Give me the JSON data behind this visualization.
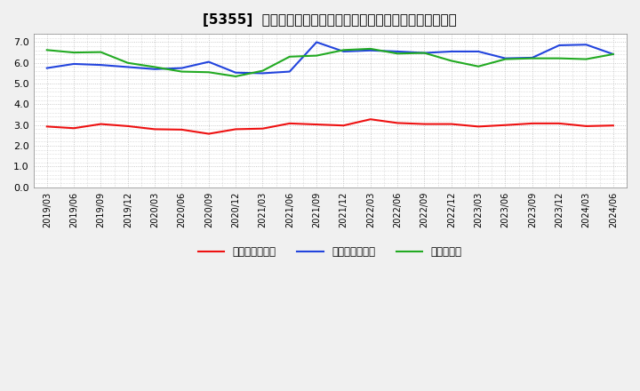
{
  "title": "[5355]  売上債権回転率、買入債務回転率、在庫回転率の推移",
  "x_labels": [
    "2019/03",
    "2019/06",
    "2019/09",
    "2019/12",
    "2020/03",
    "2020/06",
    "2020/09",
    "2020/12",
    "2021/03",
    "2021/06",
    "2021/09",
    "2021/12",
    "2022/03",
    "2022/06",
    "2022/09",
    "2022/12",
    "2023/03",
    "2023/06",
    "2023/09",
    "2023/12",
    "2024/03",
    "2024/06"
  ],
  "売上債権回転率": [
    2.93,
    2.85,
    3.05,
    2.95,
    2.8,
    2.78,
    2.58,
    2.8,
    2.83,
    3.08,
    3.03,
    2.98,
    3.28,
    3.1,
    3.05,
    3.05,
    2.93,
    3.0,
    3.08,
    3.08,
    2.95,
    2.98
  ],
  "買入債務回転率": [
    5.75,
    5.95,
    5.9,
    5.8,
    5.7,
    5.75,
    6.05,
    5.53,
    5.5,
    5.58,
    7.0,
    6.55,
    6.6,
    6.55,
    6.48,
    6.55,
    6.55,
    6.22,
    6.25,
    6.85,
    6.88,
    6.42
  ],
  "在庫回転率": [
    6.62,
    6.5,
    6.52,
    6.0,
    5.8,
    5.58,
    5.55,
    5.35,
    5.62,
    6.3,
    6.35,
    6.62,
    6.68,
    6.45,
    6.48,
    6.1,
    5.83,
    6.18,
    6.22,
    6.22,
    6.18,
    6.42
  ],
  "line_colors": {
    "売上債権回転率": "#ee1111",
    "買入債務回転率": "#2244dd",
    "在庫回転率": "#22aa22"
  },
  "ylim": [
    0.0,
    7.4
  ],
  "yticks": [
    0.0,
    1.0,
    2.0,
    3.0,
    4.0,
    5.0,
    6.0,
    7.0
  ],
  "background_color": "#f0f0f0",
  "plot_bg_color": "#ffffff",
  "grid_color": "#bbbbbb",
  "title_fontsize": 11,
  "legend_labels": [
    "売上債権回転率",
    "買入債務回転率",
    "在庫回転率"
  ]
}
